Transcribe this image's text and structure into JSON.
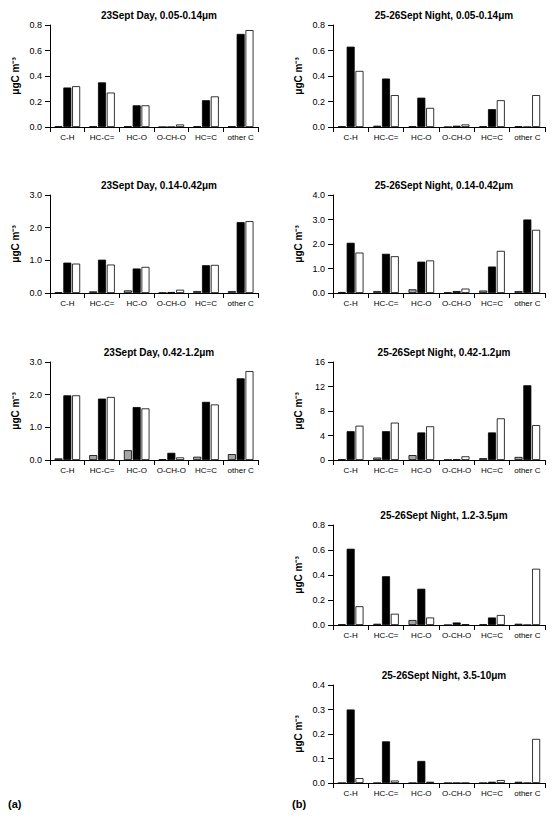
{
  "chart_data": [
    {
      "type": "bar",
      "title": "23Sept Day, 0.05-0.14μm",
      "ylabel": "μgC m⁻³",
      "categories": [
        "C-H",
        "HC-C=",
        "HC-O",
        "O-CH-O",
        "HC=C",
        "other C"
      ],
      "series": [
        {
          "color": "#a6a6a6",
          "values": [
            0.005,
            0.005,
            0.005,
            0,
            0.005,
            0.005
          ]
        },
        {
          "color": "#000000",
          "values": [
            0.31,
            0.35,
            0.17,
            0,
            0.21,
            0.73
          ]
        },
        {
          "color": "#ffffff",
          "values": [
            0.32,
            0.27,
            0.17,
            0.02,
            0.24,
            0.76
          ]
        }
      ],
      "ylim": [
        0,
        0.8
      ],
      "yticks": [
        {
          "value": 0,
          "label": "0.0"
        },
        0.2,
        0.4,
        0.6,
        0.8
      ],
      "grid": false
    },
    {
      "type": "bar",
      "title": "23Sept Day, 0.14-0.42μm",
      "ylabel": "μgC m⁻³",
      "categories": [
        "C-H",
        "HC-C=",
        "HC-O",
        "O-CH-O",
        "HC=C",
        "other C"
      ],
      "series": [
        {
          "color": "#a6a6a6",
          "values": [
            0.02,
            0.05,
            0.08,
            0.01,
            0.06,
            0.06
          ]
        },
        {
          "color": "#000000",
          "values": [
            0.93,
            1.02,
            0.75,
            0.03,
            0.85,
            2.17
          ]
        },
        {
          "color": "#ffffff",
          "values": [
            0.9,
            0.87,
            0.8,
            0.1,
            0.86,
            2.2
          ]
        }
      ],
      "ylim": [
        0,
        3
      ],
      "yticks": [
        {
          "value": 0,
          "label": "0.0"
        },
        {
          "value": 1,
          "label": "1.0"
        },
        {
          "value": 2,
          "label": "2.0"
        },
        {
          "value": 3,
          "label": "3.0"
        }
      ],
      "grid": false
    },
    {
      "type": "bar",
      "title": "23Sept Day, 0.42-1.2μm",
      "ylabel": "μgC m⁻³",
      "categories": [
        "C-H",
        "HC-C=",
        "HC-O",
        "O-CH-O",
        "HC=C",
        "other C"
      ],
      "series": [
        {
          "color": "#a6a6a6",
          "values": [
            0.05,
            0.15,
            0.3,
            0.02,
            0.1,
            0.18
          ]
        },
        {
          "color": "#000000",
          "values": [
            1.98,
            1.88,
            1.62,
            0.22,
            1.78,
            2.5
          ]
        },
        {
          "color": "#ffffff",
          "values": [
            1.98,
            1.93,
            1.58,
            0.08,
            1.7,
            2.72
          ]
        }
      ],
      "ylim": [
        0,
        3
      ],
      "yticks": [
        {
          "value": 0,
          "label": "0.0"
        },
        {
          "value": 1,
          "label": "1.0"
        },
        {
          "value": 2,
          "label": "2.0"
        },
        {
          "value": 3,
          "label": "3.0"
        }
      ],
      "grid": false
    },
    {
      "type": "bar",
      "title": "25-26Sept Night, 0.05-0.14μm",
      "ylabel": "μgC m⁻³",
      "categories": [
        "C-H",
        "HC-C=",
        "HC-O",
        "O-CH-O",
        "HC=C",
        "other C"
      ],
      "series": [
        {
          "color": "#a6a6a6",
          "values": [
            0.005,
            0.01,
            0.005,
            0,
            0.005,
            0.005
          ]
        },
        {
          "color": "#000000",
          "values": [
            0.63,
            0.38,
            0.23,
            0.01,
            0.14,
            0
          ]
        },
        {
          "color": "#ffffff",
          "values": [
            0.44,
            0.25,
            0.15,
            0.02,
            0.21,
            0.25
          ]
        }
      ],
      "ylim": [
        0,
        0.8
      ],
      "yticks": [
        {
          "value": 0,
          "label": "0.0"
        },
        0.2,
        0.4,
        0.6,
        0.8
      ],
      "grid": false
    },
    {
      "type": "bar",
      "title": "25-26Sept Night, 0.14-0.42μm",
      "ylabel": "μgC m⁻³",
      "categories": [
        "C-H",
        "HC-C=",
        "HC-O",
        "O-CH-O",
        "HC=C",
        "other C"
      ],
      "series": [
        {
          "color": "#a6a6a6",
          "values": [
            0.04,
            0.08,
            0.15,
            0.02,
            0.1,
            0.08
          ]
        },
        {
          "color": "#000000",
          "values": [
            2.05,
            1.6,
            1.28,
            0.08,
            1.08,
            3.0
          ]
        },
        {
          "color": "#ffffff",
          "values": [
            1.65,
            1.5,
            1.33,
            0.18,
            1.72,
            2.58
          ]
        }
      ],
      "ylim": [
        0,
        4
      ],
      "yticks": [
        {
          "value": 0,
          "label": "0.0"
        },
        {
          "value": 1,
          "label": "1.0"
        },
        {
          "value": 2,
          "label": "2.0"
        },
        {
          "value": 3,
          "label": "3.0"
        },
        {
          "value": 4,
          "label": "4.0"
        }
      ],
      "grid": false
    },
    {
      "type": "bar",
      "title": "25-26Sept Night, 0.42-1.2μm",
      "ylabel": "μgC m⁻³",
      "categories": [
        "C-H",
        "HC-C=",
        "HC-O",
        "O-CH-O",
        "HC=C",
        "other C"
      ],
      "series": [
        {
          "color": "#a6a6a6",
          "values": [
            0.1,
            0.4,
            0.8,
            0.05,
            0.3,
            0.5
          ]
        },
        {
          "color": "#000000",
          "values": [
            4.7,
            4.7,
            4.5,
            0.1,
            4.5,
            12.2
          ]
        },
        {
          "color": "#ffffff",
          "values": [
            5.6,
            6.1,
            5.5,
            0.6,
            6.8,
            5.7
          ]
        }
      ],
      "ylim": [
        0,
        16
      ],
      "yticks": [
        0,
        4,
        8,
        12,
        16
      ],
      "grid": false
    },
    {
      "type": "bar",
      "title": "25-26Sept Night, 1.2-3.5μm",
      "ylabel": "μgC m⁻³",
      "categories": [
        "C-H",
        "HC-C=",
        "HC-O",
        "O-CH-O",
        "HC=C",
        "other C"
      ],
      "series": [
        {
          "color": "#a6a6a6",
          "values": [
            0.005,
            0.01,
            0.04,
            0,
            0.005,
            0.01
          ]
        },
        {
          "color": "#000000",
          "values": [
            0.61,
            0.39,
            0.29,
            0.02,
            0.06,
            0
          ]
        },
        {
          "color": "#ffffff",
          "values": [
            0.15,
            0.09,
            0.06,
            0.005,
            0.08,
            0.45
          ]
        }
      ],
      "ylim": [
        0,
        0.8
      ],
      "yticks": [
        {
          "value": 0,
          "label": "0.0"
        },
        0.2,
        0.4,
        0.6,
        0.8
      ],
      "grid": false
    },
    {
      "type": "bar",
      "title": "25-26Sept Night, 3.5-10μm",
      "ylabel": "μgC m⁻³",
      "categories": [
        "C-H",
        "HC-C=",
        "HC-O",
        "O-CH-O",
        "HC=C",
        "other C"
      ],
      "series": [
        {
          "color": "#a6a6a6",
          "values": [
            0,
            0,
            0,
            0,
            0,
            0.005
          ]
        },
        {
          "color": "#000000",
          "values": [
            0.3,
            0.17,
            0.09,
            0,
            0.005,
            0
          ]
        },
        {
          "color": "#ffffff",
          "values": [
            0.02,
            0.01,
            0.005,
            0,
            0.012,
            0.18
          ]
        }
      ],
      "ylim": [
        0,
        0.4
      ],
      "yticks": [
        {
          "value": 0,
          "label": "0.0"
        },
        0.1,
        0.2,
        0.3,
        0.4
      ],
      "grid": false
    }
  ],
  "panel_labels": [
    "(a)",
    "(b)"
  ]
}
